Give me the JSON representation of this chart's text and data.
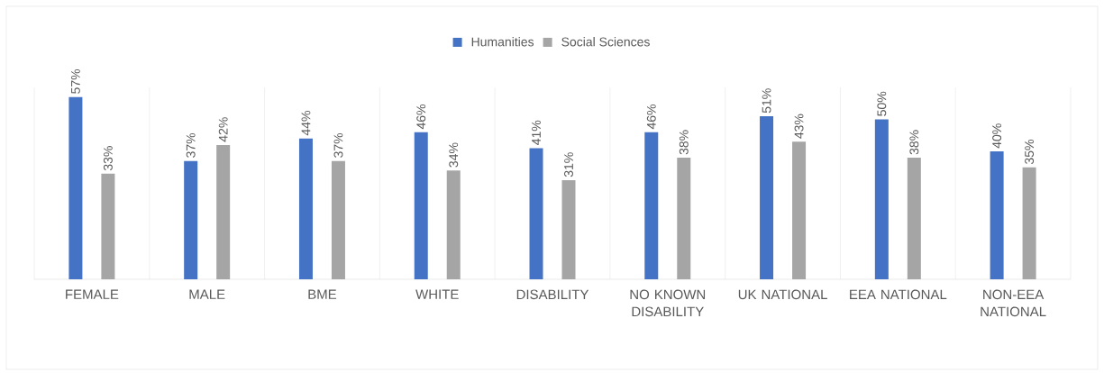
{
  "chart_data": {
    "type": "bar",
    "categories": [
      "FEMALE",
      "MALE",
      "BME",
      "WHITE",
      "DISABILITY",
      "NO KNOWN DISABILITY",
      "UK NATIONAL",
      "EEA NATIONAL",
      "NON-EEA NATIONAL"
    ],
    "series": [
      {
        "name": "Humanities",
        "color": "#4472c4",
        "values": [
          57,
          37,
          44,
          46,
          41,
          46,
          51,
          50,
          40
        ],
        "value_labels": [
          "57%",
          "37%",
          "44%",
          "46%",
          "41%",
          "46%",
          "51%",
          "50%",
          "40%"
        ]
      },
      {
        "name": "Social Sciences",
        "color": "#a5a5a5",
        "values": [
          33,
          42,
          37,
          34,
          31,
          38,
          43,
          38,
          35
        ],
        "value_labels": [
          "33%",
          "42%",
          "37%",
          "34%",
          "31%",
          "38%",
          "43%",
          "38%",
          "35%"
        ]
      }
    ],
    "ylim": [
      0,
      60
    ],
    "grid": "x",
    "legend": "top"
  }
}
